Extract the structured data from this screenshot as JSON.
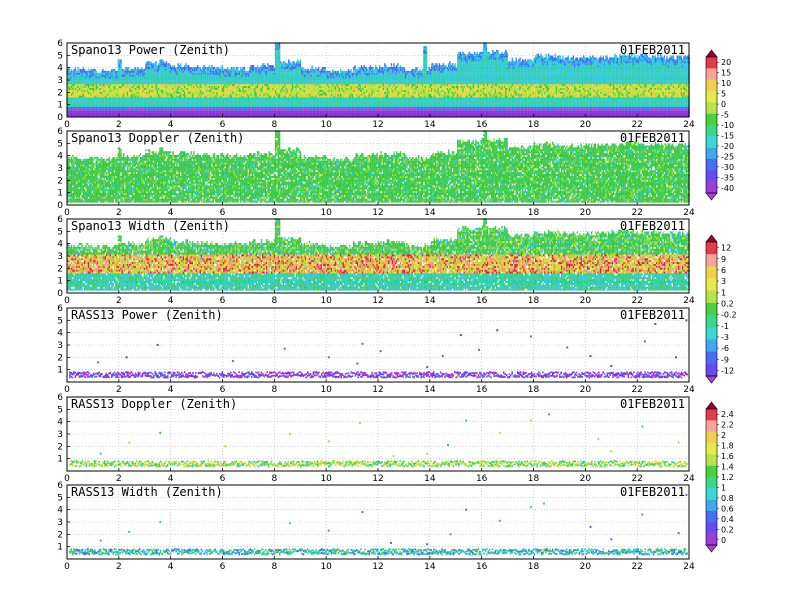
{
  "chart_data": [
    {
      "type": "heatmap",
      "title": "Spano13 Power (Zenith)",
      "date": "01FEB2011",
      "x_ticks": [
        0,
        2,
        4,
        6,
        8,
        10,
        12,
        14,
        16,
        18,
        20,
        22,
        24
      ],
      "y_ticks": [
        0,
        1,
        2,
        3,
        4,
        5,
        6
      ],
      "xlim": [
        0,
        24
      ],
      "ylim": [
        0,
        6
      ],
      "grid": true,
      "profile": "power",
      "coverage_top_km": [
        3.8,
        3.7,
        3.9,
        4.3,
        4.1,
        4.0,
        3.9,
        4.1,
        4.4,
        3.9,
        3.7,
        4.0,
        4.1,
        3.8,
        4.2,
        5.1,
        5.2,
        4.6,
        4.9,
        4.7,
        4.8,
        4.9,
        4.9,
        4.8
      ],
      "spikes": [
        {
          "x": 2.0,
          "top": 4.6
        },
        {
          "x": 3.6,
          "top": 4.6
        },
        {
          "x": 8.1,
          "top": 6.0
        },
        {
          "x": 16.1,
          "top": 6.0
        },
        {
          "x": 13.8,
          "top": 5.6
        }
      ]
    },
    {
      "type": "heatmap",
      "title": "Spano13 Doppler (Zenith)",
      "date": "01FEB2011",
      "x_ticks": [
        0,
        2,
        4,
        6,
        8,
        10,
        12,
        14,
        16,
        18,
        20,
        22,
        24
      ],
      "y_ticks": [
        0,
        1,
        2,
        3,
        4,
        5,
        6
      ],
      "xlim": [
        0,
        24
      ],
      "ylim": [
        0,
        6
      ],
      "grid": true,
      "profile": "doppler",
      "coverage_top_km": [
        3.8,
        3.7,
        3.9,
        4.3,
        4.1,
        4.0,
        3.9,
        4.1,
        4.4,
        3.9,
        3.7,
        4.0,
        4.1,
        3.8,
        4.2,
        5.1,
        5.2,
        4.6,
        4.9,
        4.7,
        4.8,
        4.9,
        4.9,
        4.8
      ],
      "spikes": [
        {
          "x": 2.0,
          "top": 4.6
        },
        {
          "x": 3.6,
          "top": 4.6
        },
        {
          "x": 8.1,
          "top": 6.0
        },
        {
          "x": 16.1,
          "top": 6.0
        }
      ]
    },
    {
      "type": "heatmap",
      "title": "Spano13 Width (Zenith)",
      "date": "01FEB2011",
      "x_ticks": [
        0,
        2,
        4,
        6,
        8,
        10,
        12,
        14,
        16,
        18,
        20,
        22,
        24
      ],
      "y_ticks": [
        0,
        1,
        2,
        3,
        4,
        5,
        6
      ],
      "xlim": [
        0,
        24
      ],
      "ylim": [
        0,
        6
      ],
      "grid": true,
      "profile": "width",
      "coverage_top_km": [
        3.8,
        3.7,
        3.9,
        4.3,
        4.1,
        4.0,
        3.9,
        4.1,
        4.4,
        3.9,
        3.7,
        4.0,
        4.1,
        3.8,
        4.2,
        5.1,
        5.2,
        4.6,
        4.9,
        4.7,
        4.8,
        4.9,
        4.9,
        4.8
      ],
      "spikes": [
        {
          "x": 2.0,
          "top": 4.6
        },
        {
          "x": 3.6,
          "top": 4.6
        },
        {
          "x": 8.1,
          "top": 6.0
        },
        {
          "x": 16.1,
          "top": 6.0
        },
        {
          "x": 15.3,
          "top": 5.4
        }
      ]
    },
    {
      "type": "heatmap",
      "title": "RASS13 Power (Zenith)",
      "date": "01FEB2011",
      "x_ticks": [
        0,
        2,
        4,
        6,
        8,
        10,
        12,
        14,
        16,
        18,
        20,
        22,
        24
      ],
      "y_ticks": [
        1,
        2,
        3,
        4,
        5,
        6
      ],
      "xlim": [
        0,
        24
      ],
      "ylim": [
        0,
        6
      ],
      "grid": true,
      "profile": "rass_power",
      "scatter": [
        [
          1.2,
          1.6
        ],
        [
          2.3,
          2.0
        ],
        [
          3.5,
          3.0
        ],
        [
          8.4,
          2.7
        ],
        [
          10.1,
          2.0
        ],
        [
          11.2,
          1.5
        ],
        [
          11.4,
          3.1
        ],
        [
          13.9,
          1.2
        ],
        [
          14.5,
          2.1
        ],
        [
          15.2,
          3.8
        ],
        [
          16.6,
          4.2
        ],
        [
          17.9,
          3.7
        ],
        [
          20.2,
          2.1
        ],
        [
          21.0,
          1.3
        ],
        [
          22.3,
          3.3
        ],
        [
          22.7,
          4.7
        ],
        [
          23.5,
          2.0
        ],
        [
          12.1,
          2.5
        ],
        [
          19.3,
          2.8
        ],
        [
          23.9,
          5.0
        ],
        [
          15.9,
          2.6
        ],
        [
          6.4,
          1.7
        ]
      ]
    },
    {
      "type": "heatmap",
      "title": "RASS13 Doppler (Zenith)",
      "date": "01FEB2011",
      "x_ticks": [
        0,
        2,
        4,
        6,
        8,
        10,
        12,
        14,
        16,
        18,
        20,
        22,
        24
      ],
      "y_ticks": [
        1,
        2,
        3,
        4,
        5,
        6
      ],
      "xlim": [
        0,
        24
      ],
      "ylim": [
        0,
        6
      ],
      "grid": true,
      "profile": "rass_doppler",
      "scatter": [
        [
          1.3,
          1.4
        ],
        [
          2.4,
          2.3
        ],
        [
          3.6,
          3.1
        ],
        [
          8.6,
          3.0
        ],
        [
          10.1,
          2.4
        ],
        [
          11.3,
          3.9
        ],
        [
          13.9,
          1.4
        ],
        [
          14.7,
          2.1
        ],
        [
          15.4,
          4.1
        ],
        [
          16.7,
          3.1
        ],
        [
          17.9,
          4.1
        ],
        [
          20.5,
          2.6
        ],
        [
          21.0,
          1.6
        ],
        [
          22.2,
          3.6
        ],
        [
          23.6,
          2.3
        ],
        [
          18.6,
          4.6
        ],
        [
          12.6,
          1.2
        ],
        [
          6.1,
          2.0
        ]
      ]
    },
    {
      "type": "heatmap",
      "title": "RASS13 Width (Zenith)",
      "date": "01FEB2011",
      "x_ticks": [
        0,
        2,
        4,
        6,
        8,
        10,
        12,
        14,
        16,
        18,
        20,
        22,
        24
      ],
      "y_ticks": [
        1,
        2,
        3,
        4,
        5,
        6
      ],
      "xlim": [
        0,
        24
      ],
      "ylim": [
        0,
        6
      ],
      "grid": true,
      "profile": "rass_width",
      "scatter": [
        [
          1.3,
          1.5
        ],
        [
          2.4,
          2.2
        ],
        [
          3.6,
          3.0
        ],
        [
          8.6,
          2.9
        ],
        [
          10.1,
          2.3
        ],
        [
          11.4,
          3.8
        ],
        [
          13.9,
          1.2
        ],
        [
          14.8,
          2.0
        ],
        [
          15.4,
          4.0
        ],
        [
          16.7,
          3.1
        ],
        [
          17.9,
          4.2
        ],
        [
          20.2,
          2.6
        ],
        [
          21.0,
          1.6
        ],
        [
          22.2,
          3.6
        ],
        [
          23.6,
          2.1
        ],
        [
          18.4,
          4.5
        ],
        [
          12.5,
          1.3
        ],
        [
          23.9,
          5.2
        ]
      ]
    }
  ],
  "colorbars": [
    {
      "labels": [
        "20",
        "15",
        "10",
        "5",
        "0",
        "-5",
        "-10",
        "-15",
        "-20",
        "-25",
        "-30",
        "-35",
        "-40"
      ],
      "colors": [
        "#9a0030",
        "#e43a50",
        "#f6a39a",
        "#f0d24a",
        "#e8e84a",
        "#b6e44a",
        "#4ad040",
        "#3ed68a",
        "#3ed6d0",
        "#40a8f0",
        "#4a6cf0",
        "#6a4af0",
        "#9a3ed6",
        "#b23ee0"
      ]
    },
    {
      "labels": [
        "12",
        "9",
        "6",
        "3",
        "1",
        "0.2",
        "-0.2",
        "-1",
        "-3",
        "-6",
        "-9",
        "-12"
      ],
      "colors": [
        "#9a0030",
        "#e43a50",
        "#f6a39a",
        "#f0d24a",
        "#e8e84a",
        "#b6e44a",
        "#4ad040",
        "#3ed68a",
        "#3ed6d0",
        "#40a8f0",
        "#4a6cf0",
        "#6a4af0",
        "#b23ee0"
      ]
    },
    {
      "labels": [
        "2.4",
        "2.2",
        "2",
        "1.8",
        "1.6",
        "1.4",
        "1.2",
        "1",
        "0.8",
        "0.6",
        "0.4",
        "0.2",
        "0"
      ],
      "colors": [
        "#9a0030",
        "#e43a50",
        "#f6a39a",
        "#f0d24a",
        "#e8e84a",
        "#b6e44a",
        "#4ad040",
        "#3ed68a",
        "#3ed6d0",
        "#40a8f0",
        "#4a6cf0",
        "#6a4af0",
        "#9a3ed6",
        "#b23ee0"
      ]
    }
  ],
  "palette": {
    "purple": "#8a2be2",
    "violet": "#b040e0",
    "blue": "#4070f0",
    "cyan": "#30c8e0",
    "teal": "#30d0a0",
    "green": "#3cc83c",
    "lime": "#a8e040",
    "yellow": "#e8d840",
    "orange": "#f0a040",
    "red": "#e02040",
    "pink": "#f080a0"
  }
}
